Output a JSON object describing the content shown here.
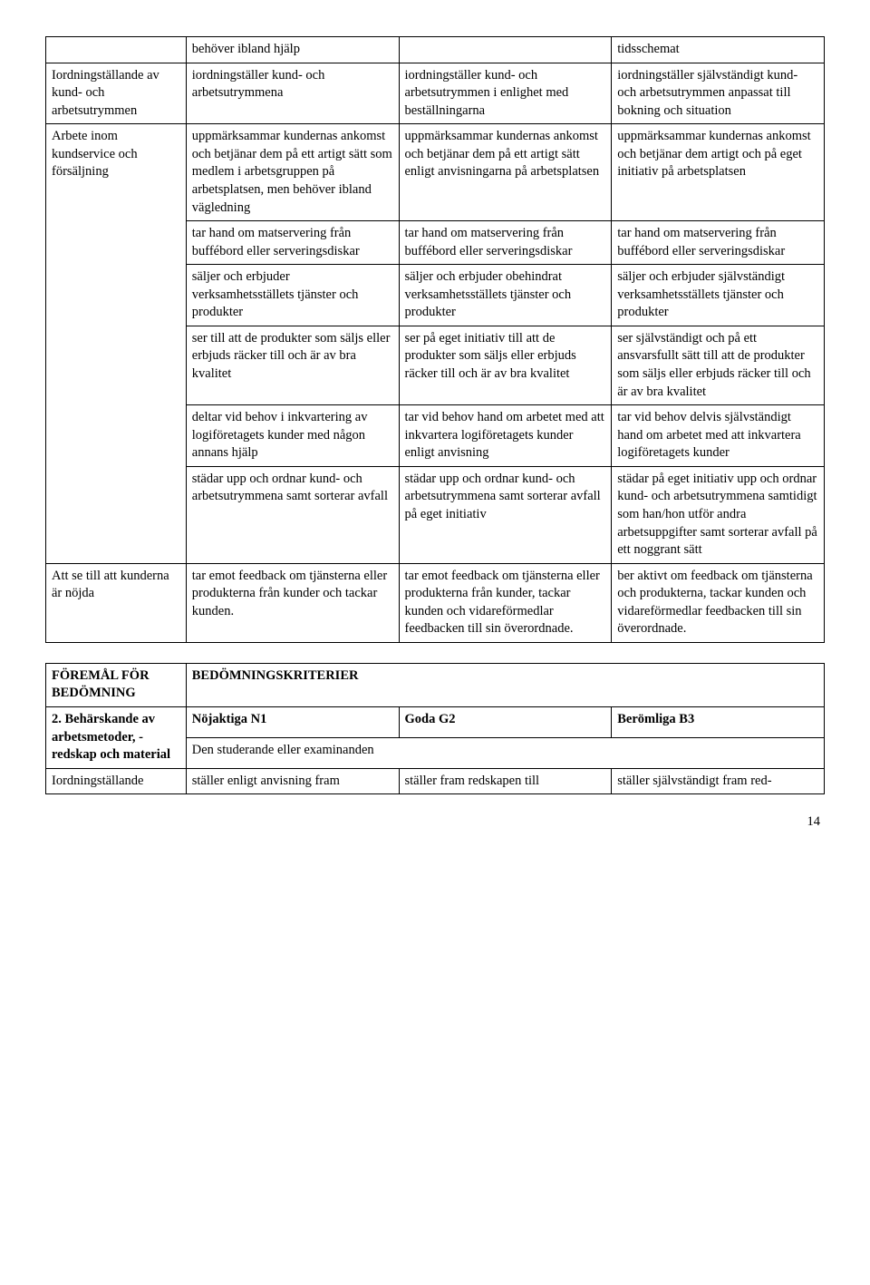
{
  "table1": {
    "rows": [
      {
        "c0": "",
        "c1": "behöver ibland hjälp",
        "c2": "",
        "c3": "tidsschemat"
      },
      {
        "c0": "Iordningställande av kund- och arbetsutrymmen",
        "c1": "iordningställer kund- och arbetsutrymmena",
        "c2": "iordningställer kund- och arbetsutrymmen i enlighet med beställningarna",
        "c3": "iordningställer självständigt kund- och arbetsutrymmen anpassat till bokning och situation"
      },
      {
        "c0": "Arbete inom kundservice och försäljning",
        "rowspan0": 6,
        "c1": "uppmärksammar kundernas ankomst och betjänar dem på ett artigt sätt som medlem i arbetsgruppen på arbetsplatsen, men behöver ibland vägledning",
        "c2": "uppmärksammar kundernas ankomst och betjänar dem på ett artigt sätt enligt anvisningarna på arbetsplatsen",
        "c3": "uppmärksammar kundernas ankomst och betjänar dem artigt och på eget initiativ på arbetsplatsen"
      },
      {
        "c1": "tar hand om matservering från buffébord eller serveringsdiskar",
        "c2": "tar hand om matservering från buffébord eller serveringsdiskar",
        "c3": "tar hand om matservering från buffébord eller serveringsdiskar"
      },
      {
        "c1": "säljer och erbjuder verksamhetsställets tjänster och produkter",
        "c2": "säljer och erbjuder obehindrat verksamhetsställets tjänster och produkter",
        "c3": "säljer och erbjuder självständigt verksamhetsställets tjänster och produkter"
      },
      {
        "c1": "ser till att de produkter som säljs eller erbjuds räcker till och är av bra kvalitet",
        "c2": "ser på eget initiativ till att de produkter som säljs eller erbjuds räcker till och är av bra kvalitet",
        "c3": "ser självständigt och på ett ansvarsfullt sätt till att de produkter som säljs eller erbjuds räcker till och är av bra kvalitet"
      },
      {
        "c1": "deltar vid behov i inkvartering av logiföretagets kunder med någon annans hjälp",
        "c2": "tar vid behov hand om arbetet med att inkvartera logiföretagets kunder enligt anvisning",
        "c3": "tar vid behov delvis självständigt hand om arbetet med att inkvartera logiföretagets kunder"
      },
      {
        "c1": "städar upp och ordnar kund- och arbetsutrymmena samt sorterar avfall",
        "c2": "städar upp och ordnar kund- och arbetsutrymmena samt sorterar avfall på eget initiativ",
        "c3": "städar på eget initiativ upp och ordnar kund- och arbetsutrymmena samtidigt som han/hon utför andra arbetsuppgifter samt sorterar avfall på ett noggrant sätt"
      },
      {
        "c0": "Att se till att kunderna är nöjda",
        "c1": "tar emot feedback om tjänsterna eller produkterna från kunder och tackar kunden.",
        "c2": "tar emot feedback om tjänsterna eller produkterna från kunder, tackar kunden och vidareförmedlar feedbacken till sin överordnade.",
        "c3": "ber aktivt om feedback om tjänsterna och produkterna, tackar kunden och vidareförmedlar feedbacken till sin överordnade."
      }
    ]
  },
  "table2": {
    "header_left": "FÖREMÅL FÖR BEDÖMNING",
    "header_right": "BEDÖMNINGSKRITERIER",
    "row2_left": "2. Behärskande av arbetsmetoder, -redskap och material",
    "n1": "Nöjaktiga N1",
    "g2": "Goda G2",
    "b3": "Berömliga B3",
    "sub": "Den studerande eller examinanden",
    "last": {
      "c0": "Iordningställande",
      "c1": "ställer enligt anvisning fram",
      "c2": "ställer fram redskapen till",
      "c3": "ställer självständigt fram red-"
    }
  },
  "page_number": "14"
}
